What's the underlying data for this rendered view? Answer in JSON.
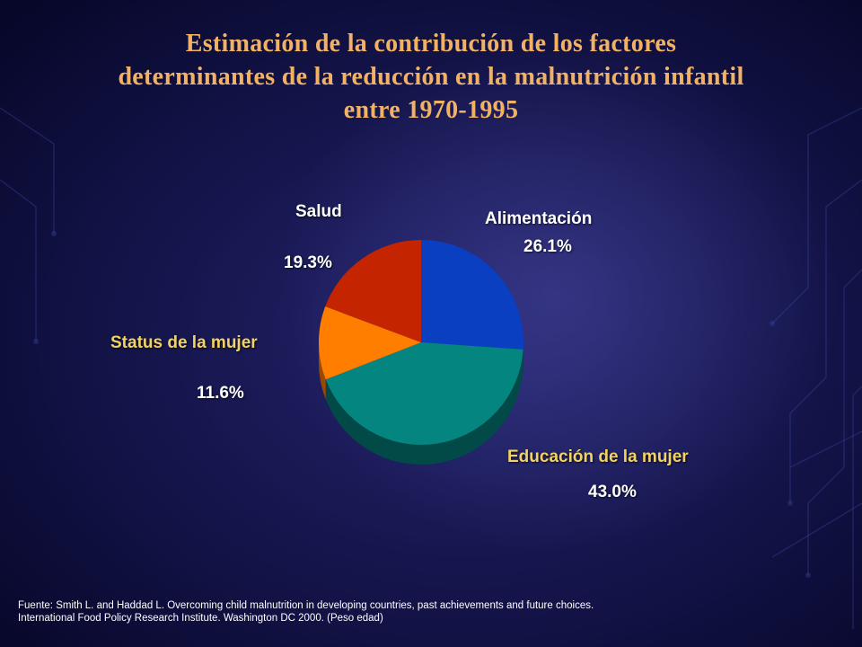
{
  "title_lines": [
    "Estimación de la contribución de los factores",
    "determinantes de la reducción en la malnutrición infantil",
    "entre 1970-1995"
  ],
  "chart_data": {
    "type": "pie",
    "title": "Estimación de la contribución de los factores determinantes de la reducción en la malnutrición infantil entre 1970-1995",
    "slices": [
      {
        "label": "Alimentación",
        "value": 26.1,
        "value_label": "26.1%",
        "color": "#0a3fc2",
        "side": "#062672"
      },
      {
        "label": "Educación de la mujer",
        "value": 43.0,
        "value_label": "43.0%",
        "color": "#04857f",
        "side": "#024a47"
      },
      {
        "label": "Status de la mujer",
        "value": 11.6,
        "value_label": "11.6%",
        "color": "#ff7e00",
        "side": "#9a4a00"
      },
      {
        "label": "Salud",
        "value": 19.3,
        "value_label": "19.3%",
        "color": "#c42500",
        "side": "#6e1400"
      }
    ]
  },
  "source_lines": [
    "Fuente: Smith L. and Haddad L. Overcoming child malnutrition in developing countries, past achievements and future choices.",
    "International Food Policy Research Institute. Washington DC 2000. (Peso edad)"
  ]
}
